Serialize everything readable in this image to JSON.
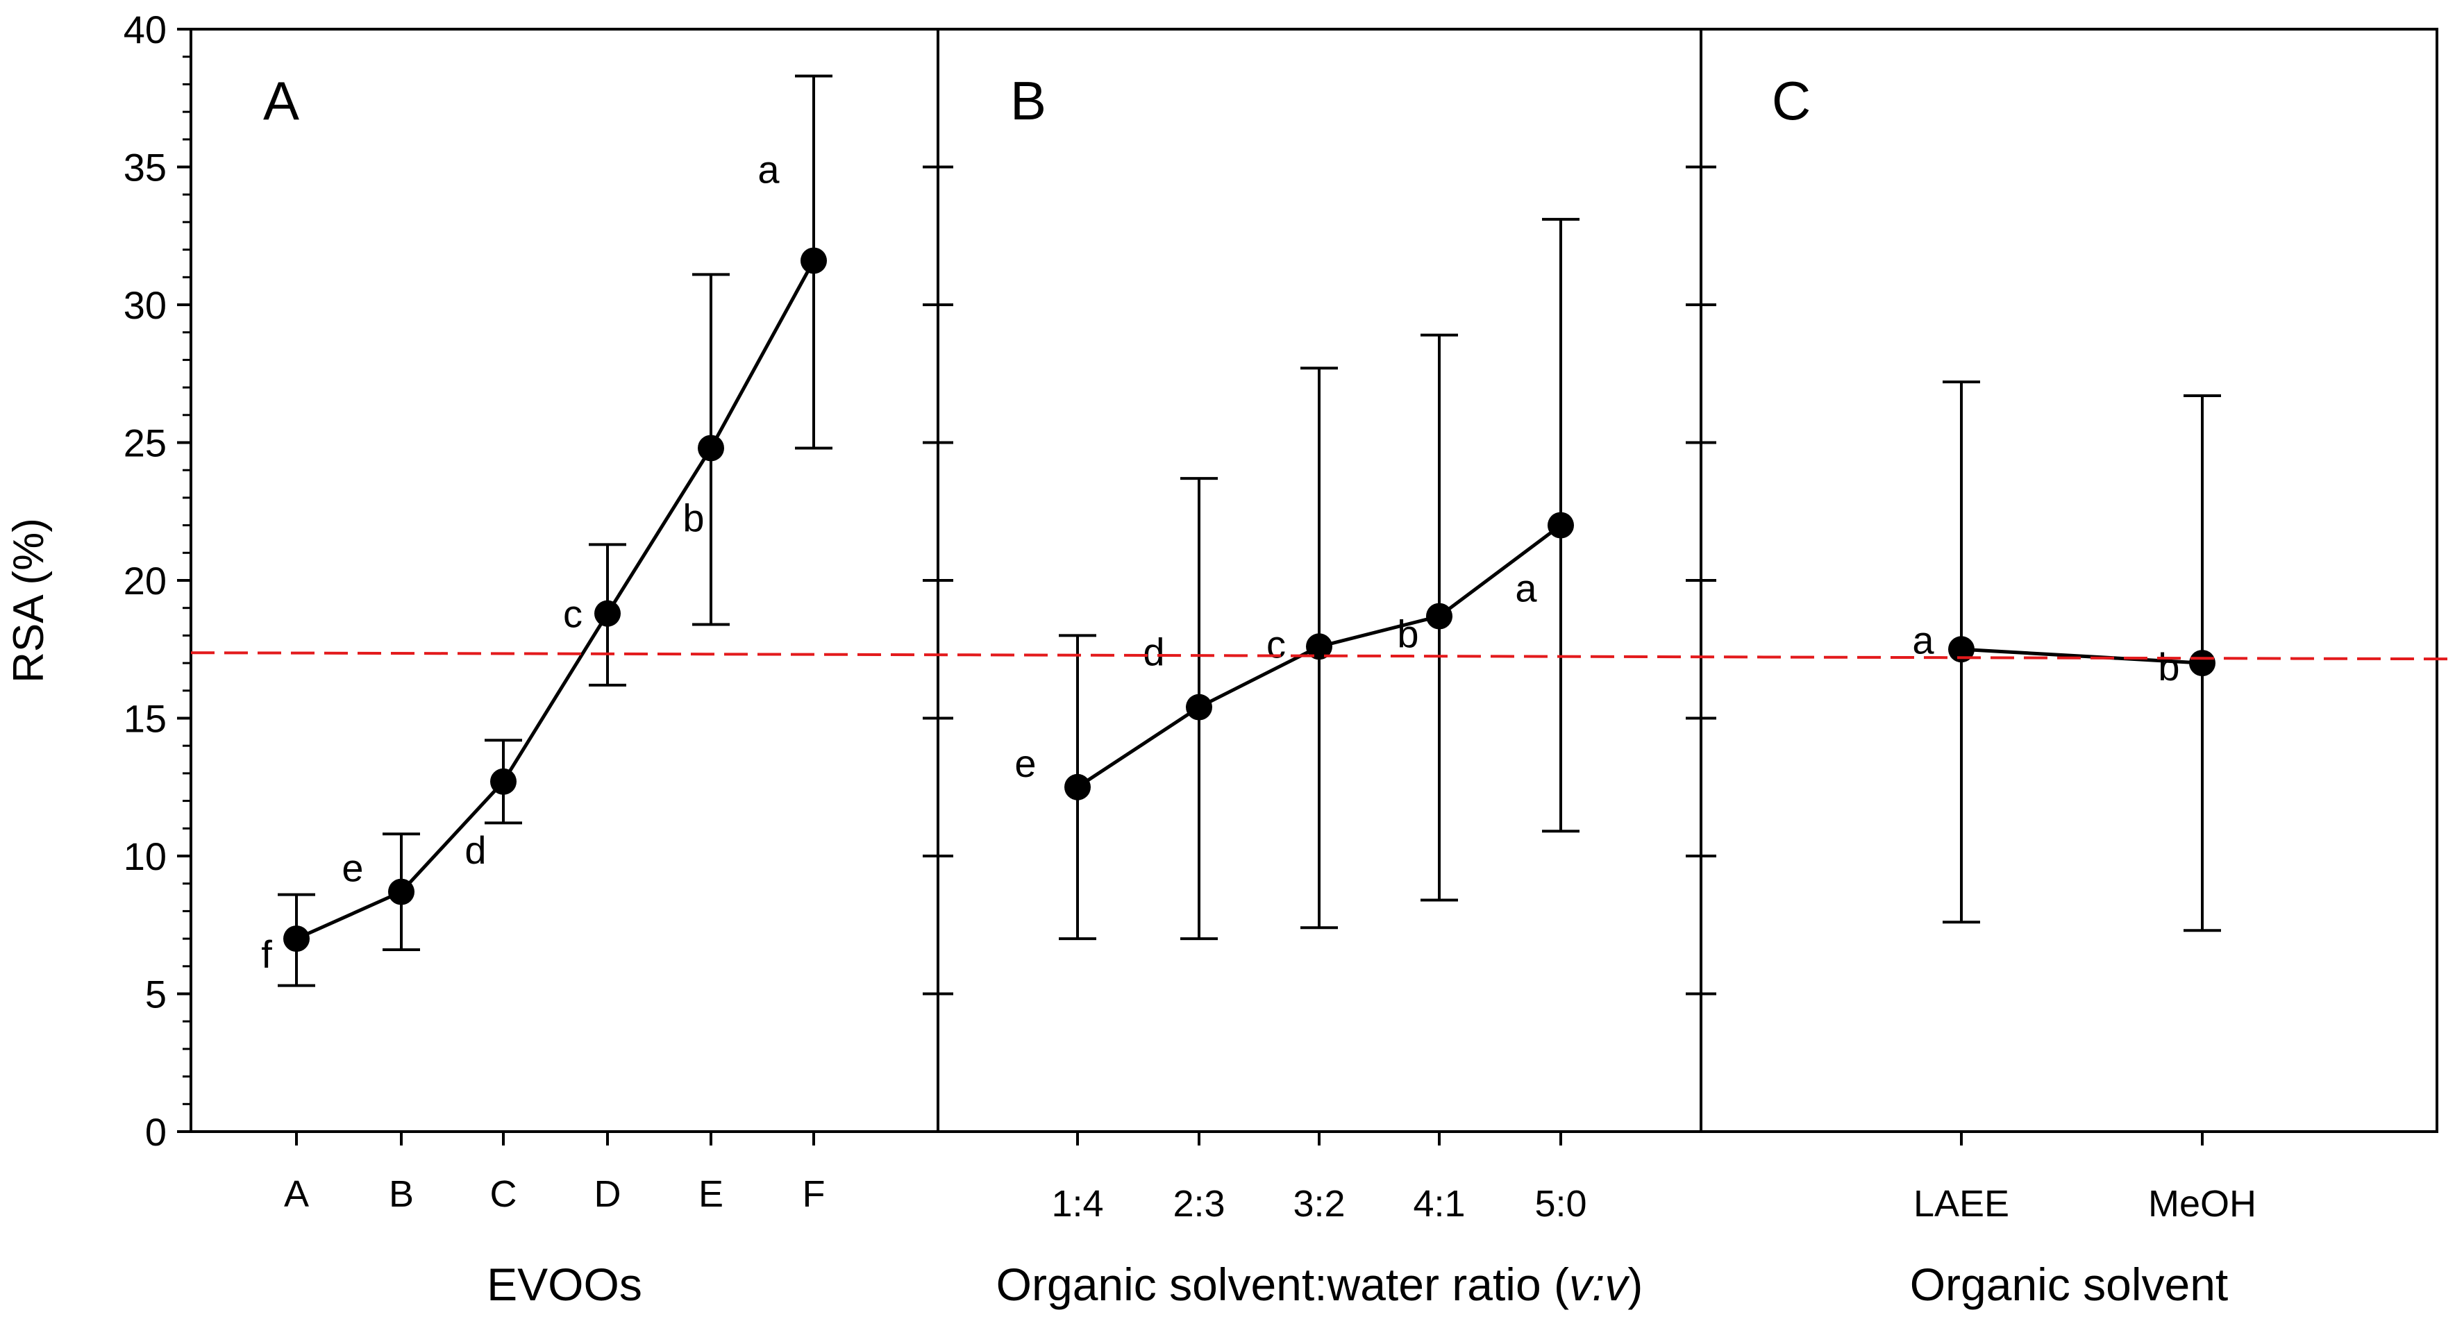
{
  "y_axis": {
    "label": "RSA  (%)",
    "ticks": [
      "0",
      "5",
      "10",
      "15",
      "20",
      "25",
      "30",
      "35",
      "40"
    ],
    "range": [
      0,
      40
    ]
  },
  "reference_line": {
    "value": 17.3,
    "color": "#e31a1c",
    "style": "dashed"
  },
  "colors": {
    "series": "#000000",
    "reference": "#e31a1c"
  },
  "chart_data": [
    {
      "type": "line",
      "panel_label": "A",
      "xlabel": "EVOOs",
      "categories": [
        "A",
        "B",
        "C",
        "D",
        "E",
        "F"
      ],
      "series": [
        {
          "values": [
            7.0,
            8.7,
            12.7,
            18.8,
            24.8,
            31.6
          ]
        }
      ],
      "error_low": [
        5.3,
        6.6,
        11.2,
        16.2,
        18.4,
        24.8
      ],
      "error_high": [
        8.6,
        10.8,
        14.2,
        21.3,
        31.1,
        38.3
      ],
      "letters": [
        "f",
        "e",
        "d",
        "c",
        "b",
        "a"
      ],
      "ylim": [
        0,
        40
      ],
      "grid": false
    },
    {
      "type": "line",
      "panel_label": "B",
      "xlabel": "Organic solvent:water ratio (v:v)",
      "categories": [
        "1:4",
        "2:3",
        "3:2",
        "4:1",
        "5:0"
      ],
      "series": [
        {
          "values": [
            12.5,
            15.4,
            17.6,
            18.7,
            22.0
          ]
        }
      ],
      "error_low": [
        7.0,
        7.0,
        7.4,
        8.4,
        10.9
      ],
      "error_high": [
        18.0,
        23.7,
        27.7,
        28.9,
        33.1
      ],
      "letters": [
        "e",
        "d",
        "c",
        "b",
        "a"
      ],
      "ylim": [
        0,
        40
      ],
      "grid": false
    },
    {
      "type": "line",
      "panel_label": "C",
      "xlabel": "Organic solvent",
      "categories": [
        "LAEE",
        "MeOH"
      ],
      "series": [
        {
          "values": [
            17.5,
            17.0
          ]
        }
      ],
      "error_low": [
        7.6,
        7.3
      ],
      "error_high": [
        27.2,
        26.7
      ],
      "letters": [
        "a",
        "b"
      ],
      "ylim": [
        0,
        40
      ],
      "grid": false
    }
  ]
}
